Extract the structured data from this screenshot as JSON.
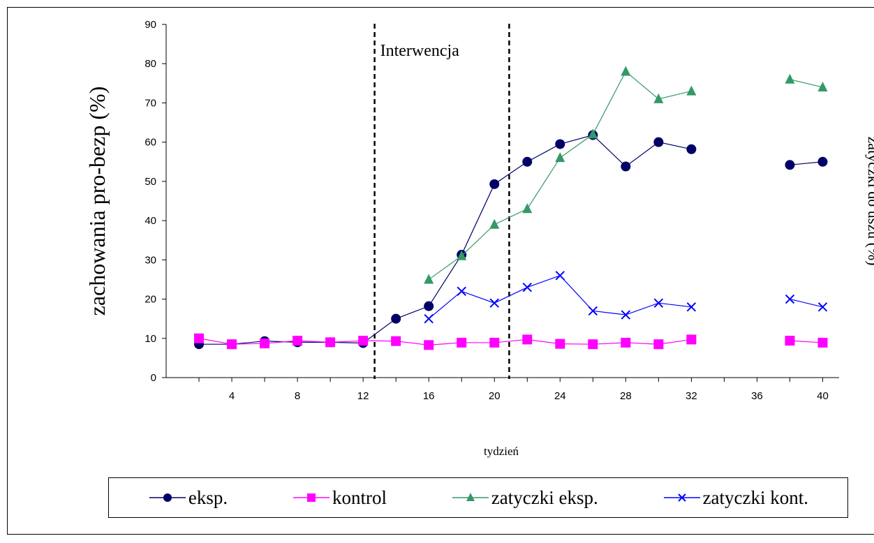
{
  "chart_data": {
    "type": "line",
    "title": "",
    "xlabel": "tydzień",
    "ylabel": "zachowania pro-bezp (%)",
    "y2label": "zatyczki do uszu (%)",
    "annotation": "Interwencja",
    "intervention_lines_x": [
      12.7,
      20.9
    ],
    "xlim": [
      0,
      41
    ],
    "ylim": [
      0,
      90
    ],
    "xticks": [
      4,
      8,
      12,
      16,
      20,
      24,
      28,
      32,
      36,
      40
    ],
    "yticks": [
      0,
      10,
      20,
      30,
      40,
      50,
      60,
      70,
      80,
      90
    ],
    "grid": false,
    "legend_position": "bottom",
    "series": [
      {
        "name": "eksp.",
        "color": "#000066",
        "marker": "circle",
        "segments": [
          [
            [
              2,
              8.5
            ],
            [
              4,
              8.5
            ],
            [
              6,
              9.3
            ],
            [
              8,
              9
            ],
            [
              10,
              9
            ],
            [
              12,
              8.8
            ],
            [
              14,
              15
            ],
            [
              16,
              18.2
            ],
            [
              18,
              31.3
            ],
            [
              20,
              49.3
            ],
            [
              22,
              55
            ],
            [
              24,
              59.5
            ],
            [
              26,
              61.8
            ],
            [
              28,
              53.8
            ],
            [
              30,
              60
            ],
            [
              32,
              58.2
            ]
          ],
          [
            [
              38,
              54.2
            ],
            [
              40,
              55
            ]
          ]
        ]
      },
      {
        "name": "kontrol",
        "color": "#FF00FF",
        "marker": "square",
        "segments": [
          [
            [
              2,
              10
            ],
            [
              4,
              8.5
            ],
            [
              6,
              8.7
            ],
            [
              8,
              9.4
            ],
            [
              10,
              9
            ],
            [
              12,
              9.4
            ],
            [
              14,
              9.3
            ],
            [
              16,
              8.3
            ],
            [
              18,
              8.9
            ],
            [
              20,
              8.9
            ],
            [
              22,
              9.7
            ],
            [
              24,
              8.6
            ],
            [
              26,
              8.5
            ],
            [
              28,
              8.9
            ],
            [
              30,
              8.5
            ],
            [
              32,
              9.7
            ]
          ],
          [
            [
              38,
              9.4
            ],
            [
              40,
              8.9
            ]
          ]
        ]
      },
      {
        "name": "zatyczki eksp.",
        "color": "#339966",
        "marker": "triangle",
        "segments": [
          [
            [
              16,
              25
            ],
            [
              18,
              31
            ],
            [
              20,
              39
            ],
            [
              22,
              43
            ],
            [
              24,
              56
            ],
            [
              26,
              62
            ],
            [
              28,
              78
            ],
            [
              30,
              71
            ],
            [
              32,
              73
            ]
          ],
          [
            [
              38,
              76
            ],
            [
              40,
              74
            ]
          ]
        ]
      },
      {
        "name": "zatyczki kont.",
        "color": "#0000FF",
        "marker": "x",
        "segments": [
          [
            [
              16,
              15
            ],
            [
              18,
              22
            ],
            [
              20,
              19
            ],
            [
              22,
              23
            ],
            [
              24,
              26
            ],
            [
              26,
              17
            ],
            [
              28,
              16
            ],
            [
              30,
              19
            ],
            [
              32,
              18
            ]
          ],
          [
            [
              38,
              20
            ],
            [
              40,
              18
            ]
          ]
        ]
      }
    ]
  }
}
